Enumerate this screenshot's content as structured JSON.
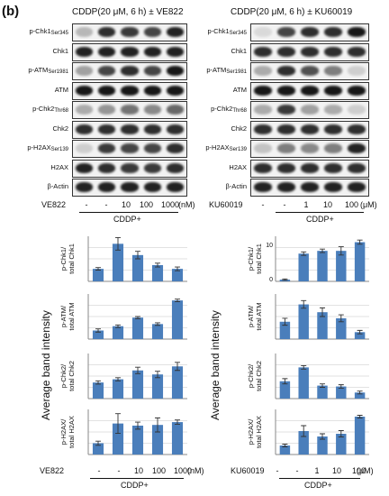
{
  "panel_letter": "(b)",
  "left": {
    "header": "CDDP(20 μM, 6 h) ± VE822",
    "inhibitor": "VE822",
    "cond_values": [
      "-",
      "-",
      "10",
      "100",
      "1000"
    ],
    "unit": "(nM)",
    "cddp": "CDDP+"
  },
  "right": {
    "header": "CDDP(20 μM, 6 h) ± KU60019",
    "inhibitor": "KU60019",
    "cond_values": [
      "-",
      "-",
      "1",
      "10",
      "100"
    ],
    "unit": "(μM)",
    "cddp": "CDDP+"
  },
  "blot_labels": [
    {
      "main": "p-Chk1",
      "sub": "Ser345"
    },
    {
      "main": "Chk1",
      "sub": ""
    },
    {
      "main": "p-ATM",
      "sub": "Ser1981"
    },
    {
      "main": "ATM",
      "sub": ""
    },
    {
      "main": "p-Chk2",
      "sub": "Thr68"
    },
    {
      "main": "Chk2",
      "sub": ""
    },
    {
      "main": "p-H2AX",
      "sub": "Ser139"
    },
    {
      "main": "H2AX",
      "sub": ""
    },
    {
      "main": "β-Actin",
      "sub": ""
    }
  ],
  "blot_intensity": {
    "left": [
      [
        0.25,
        0.85,
        0.8,
        0.75,
        0.9
      ],
      [
        0.9,
        0.9,
        0.9,
        0.9,
        0.9
      ],
      [
        0.35,
        0.75,
        0.85,
        0.75,
        0.95
      ],
      [
        0.95,
        0.95,
        0.95,
        0.95,
        0.95
      ],
      [
        0.3,
        0.4,
        0.55,
        0.45,
        0.6
      ],
      [
        0.85,
        0.85,
        0.85,
        0.85,
        0.85
      ],
      [
        0.15,
        0.8,
        0.75,
        0.75,
        0.85
      ],
      [
        0.9,
        0.85,
        0.8,
        0.8,
        0.85
      ],
      [
        0.9,
        0.9,
        0.9,
        0.9,
        0.9
      ]
    ],
    "right": [
      [
        0.1,
        0.75,
        0.85,
        0.85,
        0.95
      ],
      [
        0.85,
        0.85,
        0.85,
        0.85,
        0.85
      ],
      [
        0.3,
        0.85,
        0.7,
        0.5,
        0.15
      ],
      [
        0.95,
        0.95,
        0.95,
        0.95,
        0.95
      ],
      [
        0.3,
        0.8,
        0.35,
        0.3,
        0.15
      ],
      [
        0.85,
        0.85,
        0.85,
        0.85,
        0.85
      ],
      [
        0.2,
        0.5,
        0.45,
        0.5,
        0.9
      ],
      [
        0.85,
        0.85,
        0.85,
        0.85,
        0.85
      ],
      [
        0.9,
        0.9,
        0.9,
        0.9,
        0.9
      ]
    ]
  },
  "y_axis_title": "Average band intensity",
  "row_labels": [
    [
      "p-Chk1/",
      "total Chk1"
    ],
    [
      "p-ATM/",
      "total ATM"
    ],
    [
      "p-Chk2/",
      "total Chk2"
    ],
    [
      "p-H2AX/",
      "total H2AX"
    ]
  ],
  "right_top_ticks": [
    "10",
    "0"
  ],
  "chart_data": [
    {
      "type": "bar",
      "panel": "left",
      "ylabel": "p-Chk1/ total Chk1",
      "categories": [
        "-",
        "-",
        "10",
        "100",
        "1000"
      ],
      "values": [
        1.0,
        3.0,
        2.1,
        1.3,
        1.0
      ],
      "errors": [
        0.1,
        0.5,
        0.3,
        0.15,
        0.15
      ],
      "ylim": [
        0,
        3.6
      ],
      "color": "#4a7ebb"
    },
    {
      "type": "bar",
      "panel": "left",
      "ylabel": "p-ATM/ total ATM",
      "categories": [
        "-",
        "-",
        "10",
        "100",
        "1000"
      ],
      "values": [
        0.8,
        1.2,
        2.0,
        1.4,
        3.6
      ],
      "errors": [
        0.15,
        0.12,
        0.1,
        0.12,
        0.12
      ],
      "ylim": [
        0,
        4.2
      ],
      "color": "#4a7ebb"
    },
    {
      "type": "bar",
      "panel": "left",
      "ylabel": "p-Chk2/ total Chk2",
      "categories": [
        "-",
        "-",
        "10",
        "100",
        "1000"
      ],
      "values": [
        1.0,
        1.2,
        1.75,
        1.5,
        2.0
      ],
      "errors": [
        0.1,
        0.1,
        0.2,
        0.2,
        0.25
      ],
      "ylim": [
        0,
        2.8
      ],
      "color": "#4a7ebb"
    },
    {
      "type": "bar",
      "panel": "left",
      "ylabel": "p-H2AX/ total H2AX",
      "categories": [
        "-",
        "-",
        "10",
        "100",
        "1000"
      ],
      "values": [
        0.8,
        2.2,
        2.05,
        2.1,
        2.3
      ],
      "errors": [
        0.15,
        0.7,
        0.25,
        0.5,
        0.15
      ],
      "ylim": [
        0,
        3.2
      ],
      "color": "#4a7ebb"
    },
    {
      "type": "bar",
      "panel": "right",
      "ylabel": "p-Chk1/ total Chk1",
      "categories": [
        "-",
        "-",
        "1",
        "10",
        "100"
      ],
      "values": [
        0.5,
        8.0,
        8.8,
        8.8,
        11.3
      ],
      "errors": [
        0.2,
        0.5,
        0.5,
        1.2,
        0.6
      ],
      "ylim": [
        0,
        13
      ],
      "color": "#4a7ebb"
    },
    {
      "type": "bar",
      "panel": "right",
      "ylabel": "p-ATM/ total ATM",
      "categories": [
        "-",
        "-",
        "1",
        "10",
        "100"
      ],
      "values": [
        1.0,
        2.0,
        1.55,
        1.2,
        0.4
      ],
      "errors": [
        0.2,
        0.22,
        0.25,
        0.2,
        0.1
      ],
      "ylim": [
        0,
        2.6
      ],
      "color": "#4a7ebb"
    },
    {
      "type": "bar",
      "panel": "right",
      "ylabel": "p-Chk2/ total Chk2",
      "categories": [
        "-",
        "-",
        "1",
        "10",
        "100"
      ],
      "values": [
        1.0,
        1.8,
        0.75,
        0.7,
        0.35
      ],
      "errors": [
        0.15,
        0.1,
        0.1,
        0.1,
        0.08
      ],
      "ylim": [
        0,
        2.6
      ],
      "color": "#4a7ebb"
    },
    {
      "type": "bar",
      "panel": "right",
      "ylabel": "p-H2AX/ total H2AX",
      "categories": [
        "-",
        "-",
        "1",
        "10",
        "100"
      ],
      "values": [
        1.0,
        2.6,
        2.0,
        2.3,
        4.2
      ],
      "errors": [
        0.15,
        0.6,
        0.3,
        0.35,
        0.15
      ],
      "ylim": [
        0,
        5
      ],
      "color": "#4a7ebb"
    }
  ]
}
